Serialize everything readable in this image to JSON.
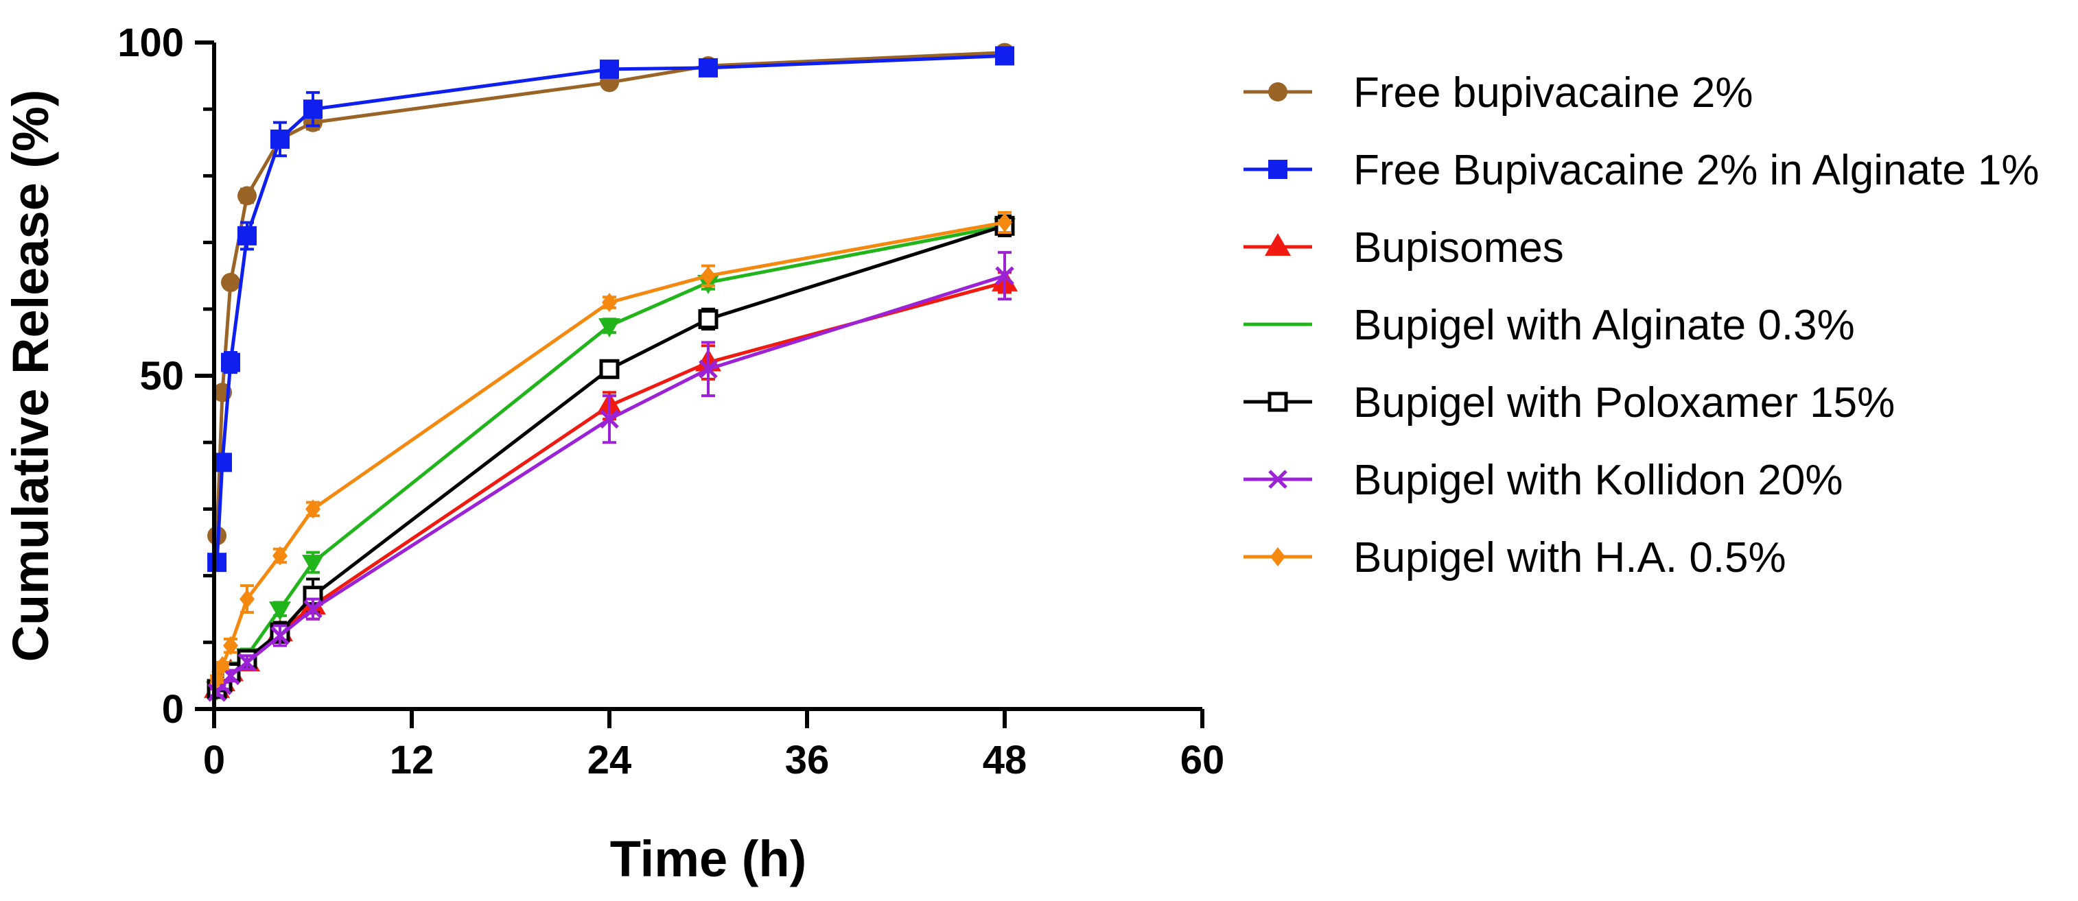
{
  "chart_data": {
    "type": "line",
    "title": "",
    "xlabel": "Time (h)",
    "ylabel": "Cumulative Release (%)",
    "xlim": [
      0,
      60
    ],
    "ylim": [
      0,
      100
    ],
    "xticks": [
      0,
      12,
      24,
      36,
      48,
      60
    ],
    "yticks": [
      0,
      50,
      100
    ],
    "x_tick_labels": [
      "0",
      "12",
      "24",
      "36",
      "48",
      "60"
    ],
    "y_tick_labels": [
      "0",
      "50",
      "100"
    ],
    "legend_position": "right",
    "grid": false,
    "series": [
      {
        "name": "Free bupivacaine 2%",
        "color": "#9B6427",
        "marker": "circle",
        "x": [
          0.17,
          0.5,
          1,
          2,
          4,
          6,
          24,
          30,
          48
        ],
        "y": [
          26,
          47.5,
          64,
          77,
          85.5,
          88,
          94,
          96.5,
          98.5
        ],
        "err": [
          0.5,
          0.5,
          0.8,
          1,
          1,
          1,
          0.8,
          0.5,
          0.5
        ]
      },
      {
        "name": "Free Bupivacaine 2% in Alginate 1%",
        "color": "#0F1FEF",
        "marker": "square",
        "x": [
          0.17,
          0.5,
          1,
          2,
          4,
          6,
          24,
          30,
          48
        ],
        "y": [
          22,
          37,
          52,
          71,
          85.5,
          90,
          96,
          96.2,
          98
        ],
        "err": [
          1,
          1,
          1.5,
          2,
          2.5,
          2.5,
          1,
          0.8,
          0.6
        ]
      },
      {
        "name": "Bupisomes",
        "color": "#F01A10",
        "marker": "triangle-up",
        "x": [
          0.17,
          0.5,
          1,
          2,
          4,
          6,
          24,
          30,
          48
        ],
        "y": [
          3,
          4,
          5.5,
          7,
          11.5,
          15.5,
          45.5,
          52,
          64
        ],
        "err": [
          0.5,
          0.5,
          0.8,
          1,
          1.5,
          2,
          2,
          2.5,
          1.5
        ]
      },
      {
        "name": "Bupigel with Alginate 0.3%",
        "color": "#22B51B",
        "marker": "triangle-down",
        "x": [
          0.17,
          0.5,
          1,
          2,
          4,
          6,
          24,
          30,
          48
        ],
        "y": [
          3,
          4.5,
          6,
          8,
          15,
          22,
          57.5,
          64,
          72.5
        ],
        "err": [
          0.5,
          0.5,
          0.8,
          1,
          1,
          1.5,
          1,
          1,
          1.5
        ]
      },
      {
        "name": "Bupigel with Poloxamer 15%",
        "color": "#000000",
        "marker": "open-square",
        "x": [
          0.17,
          0.5,
          1,
          2,
          4,
          6,
          24,
          30,
          48
        ],
        "y": [
          3,
          4,
          5.5,
          7.5,
          11.5,
          17,
          51,
          58.5,
          72.5
        ],
        "err": [
          0.5,
          0.5,
          0.8,
          1,
          1.5,
          2.5,
          1,
          1.5,
          1.5
        ]
      },
      {
        "name": "Bupigel with Kollidon 20%",
        "color": "#9B22D6",
        "marker": "cross",
        "x": [
          0.17,
          0.5,
          1,
          2,
          4,
          6,
          24,
          30,
          48
        ],
        "y": [
          2.5,
          3.5,
          5,
          7,
          11,
          15,
          43.5,
          51,
          65
        ],
        "err": [
          0.5,
          0.5,
          0.8,
          1,
          1.5,
          1.5,
          3.5,
          4,
          3.5
        ]
      },
      {
        "name": "Bupigel with H.A. 0.5%",
        "color": "#F5880E",
        "marker": "diamond",
        "x": [
          0.17,
          0.5,
          1,
          2,
          4,
          6,
          24,
          30,
          48
        ],
        "y": [
          4.5,
          6.5,
          9.5,
          16.5,
          23,
          30,
          61,
          65,
          73
        ],
        "err": [
          0.5,
          0.5,
          1,
          2,
          1,
          1,
          0.8,
          1.5,
          1.5
        ]
      }
    ]
  }
}
